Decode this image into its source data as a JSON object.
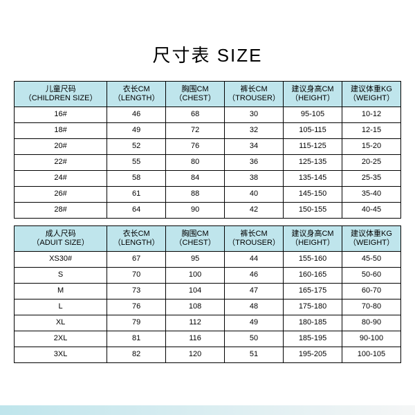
{
  "title": "尺寸表 SIZE",
  "colors": {
    "header_bg": "#bfe5ec",
    "border": "#000000",
    "text": "#000000",
    "background": "#ffffff"
  },
  "columns_children": [
    "儿童尺码\n（CHILDREN SIZE）",
    "衣长CM\n（LENGTH）",
    "胸围CM\n（CHEST）",
    "裤长CM\n（TROUSER）",
    "建议身高CM\n（HEIGHT）",
    "建议体重KG\n（WEIGHT）"
  ],
  "rows_children": [
    [
      "16#",
      "46",
      "68",
      "30",
      "95-105",
      "10-12"
    ],
    [
      "18#",
      "49",
      "72",
      "32",
      "105-115",
      "12-15"
    ],
    [
      "20#",
      "52",
      "76",
      "34",
      "115-125",
      "15-20"
    ],
    [
      "22#",
      "55",
      "80",
      "36",
      "125-135",
      "20-25"
    ],
    [
      "24#",
      "58",
      "84",
      "38",
      "135-145",
      "25-35"
    ],
    [
      "26#",
      "61",
      "88",
      "40",
      "145-150",
      "35-40"
    ],
    [
      "28#",
      "64",
      "90",
      "42",
      "150-155",
      "40-45"
    ]
  ],
  "columns_adult": [
    "成人尺码\n（ADUIT SIZE）",
    "衣长CM\n（LENGTH）",
    "胸围CM\n（CHEST）",
    "裤长CM\n（TROUSER）",
    "建议身高CM\n（HEIGHT）",
    "建议体重KG\n（WEIGHT）"
  ],
  "rows_adult": [
    [
      "XS30#",
      "67",
      "95",
      "44",
      "155-160",
      "45-50"
    ],
    [
      "S",
      "70",
      "100",
      "46",
      "160-165",
      "50-60"
    ],
    [
      "M",
      "73",
      "104",
      "47",
      "165-175",
      "60-70"
    ],
    [
      "L",
      "76",
      "108",
      "48",
      "175-180",
      "70-80"
    ],
    [
      "XL",
      "79",
      "112",
      "49",
      "180-185",
      "80-90"
    ],
    [
      "2XL",
      "81",
      "116",
      "50",
      "185-195",
      "90-100"
    ],
    [
      "3XL",
      "82",
      "120",
      "51",
      "195-205",
      "100-105"
    ]
  ]
}
